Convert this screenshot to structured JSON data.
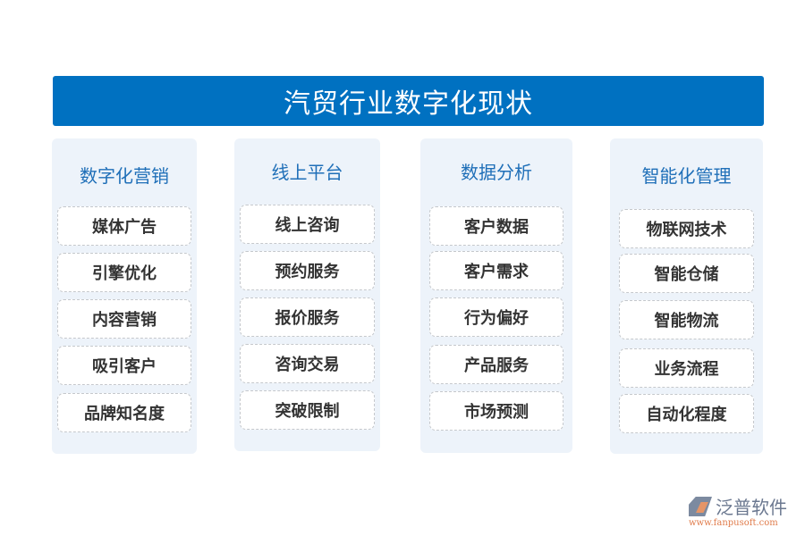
{
  "title": "汽贸行业数字化现状",
  "colors": {
    "banner": "#0071c1",
    "heading": "#1f6fb8",
    "panel": "#edf3fa"
  },
  "columns": [
    {
      "heading": "数字化营销",
      "items": [
        "媒体广告",
        "引擎优化",
        "内容营销",
        "吸引客户",
        "品牌知名度"
      ]
    },
    {
      "heading": "线上平台",
      "items": [
        "线上咨询",
        "预约服务",
        "报价服务",
        "咨询交易",
        "突破限制"
      ]
    },
    {
      "heading": "数据分析",
      "items": [
        "客户数据",
        "客户需求",
        "行为偏好",
        "产品服务",
        "市场预测"
      ]
    },
    {
      "heading": "智能化管理",
      "items": [
        "物联网技术",
        "智能仓储",
        "智能物流",
        "业务流程",
        "自动化程度"
      ]
    }
  ],
  "logo": {
    "name": "泛普软件",
    "url": "www.fanpusoft.com"
  }
}
